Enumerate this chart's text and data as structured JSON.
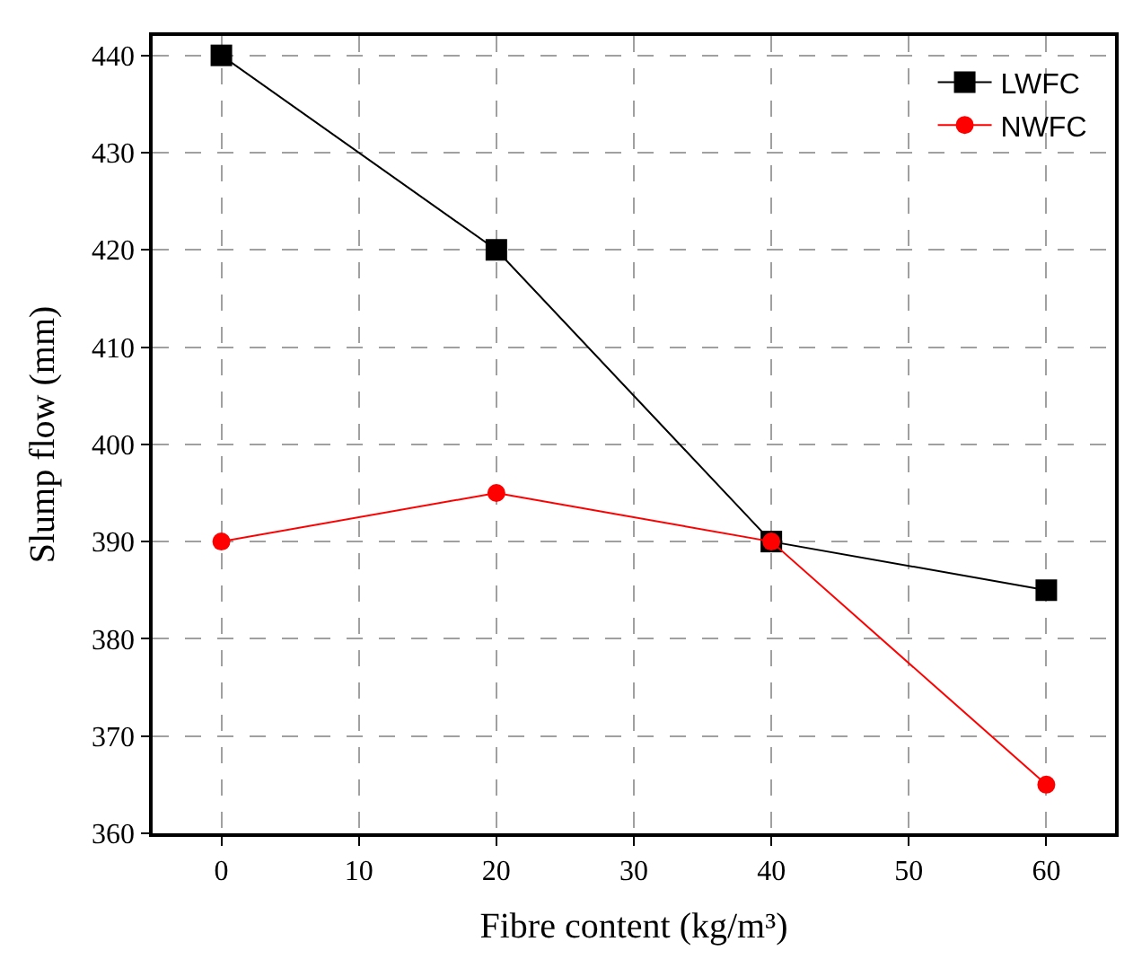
{
  "chart_data": {
    "type": "line",
    "xlabel": "Fibre content (kg/m³)",
    "ylabel": "Slump flow (mm)",
    "x": [
      0,
      20,
      40,
      60
    ],
    "series": [
      {
        "name": "LWFC",
        "color": "#000000",
        "marker": "square",
        "values": [
          440,
          420,
          390,
          385
        ]
      },
      {
        "name": "NWFC",
        "color": "#ff0000",
        "marker": "circle",
        "values": [
          390,
          395,
          390,
          365
        ]
      }
    ],
    "xlim": [
      -5,
      65
    ],
    "xticks": [
      0,
      10,
      20,
      30,
      40,
      50,
      60
    ],
    "ylim": [
      360,
      442
    ],
    "yticks": [
      360,
      370,
      380,
      390,
      400,
      410,
      420,
      430,
      440
    ],
    "grid": true,
    "legend": "top right",
    "line_style": "solid"
  }
}
